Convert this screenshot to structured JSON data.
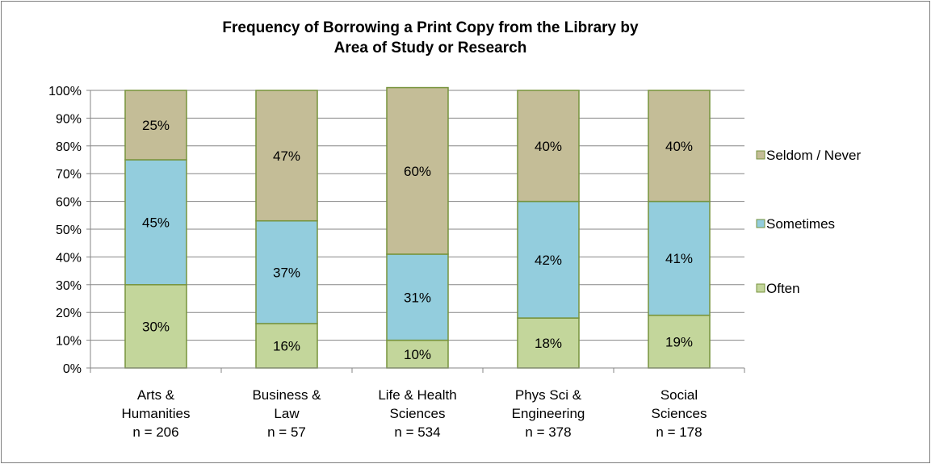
{
  "chart_data": {
    "type": "bar",
    "stacked": true,
    "title_lines": [
      "Frequency of Borrowing a Print Copy from the Library by",
      "Area of Study or Research"
    ],
    "categories": [
      [
        "Arts &",
        "Humanities",
        "n = 206"
      ],
      [
        "Business &",
        "Law",
        "n = 57"
      ],
      [
        "Life & Health",
        "Sciences",
        "n = 534"
      ],
      [
        "Phys Sci &",
        "Engineering",
        "n = 378"
      ],
      [
        "Social",
        "Sciences",
        "n = 178"
      ]
    ],
    "series": [
      {
        "name": "Often",
        "values": [
          30,
          16,
          10,
          18,
          19
        ],
        "labels": [
          "30%",
          "16%",
          "10%",
          "18%",
          "19%"
        ],
        "color": "#c3d69b",
        "stroke": "#77933c"
      },
      {
        "name": "Sometimes",
        "values": [
          45,
          37,
          31,
          42,
          41
        ],
        "labels": [
          "45%",
          "37%",
          "31%",
          "42%",
          "41%"
        ],
        "color": "#93cddd",
        "stroke": "#77933c"
      },
      {
        "name": "Seldom / Never",
        "values": [
          25,
          47,
          60,
          40,
          40
        ],
        "labels": [
          "25%",
          "47%",
          "60%",
          "40%",
          "40%"
        ],
        "color": "#c4bd97",
        "stroke": "#77933c"
      }
    ],
    "ylim": [
      0,
      100
    ],
    "yticks": [
      "0%",
      "10%",
      "20%",
      "30%",
      "40%",
      "50%",
      "60%",
      "70%",
      "80%",
      "90%",
      "100%"
    ],
    "grid": true,
    "legend_position": "right",
    "legend_order": [
      "Seldom / Never",
      "Sometimes",
      "Often"
    ]
  }
}
